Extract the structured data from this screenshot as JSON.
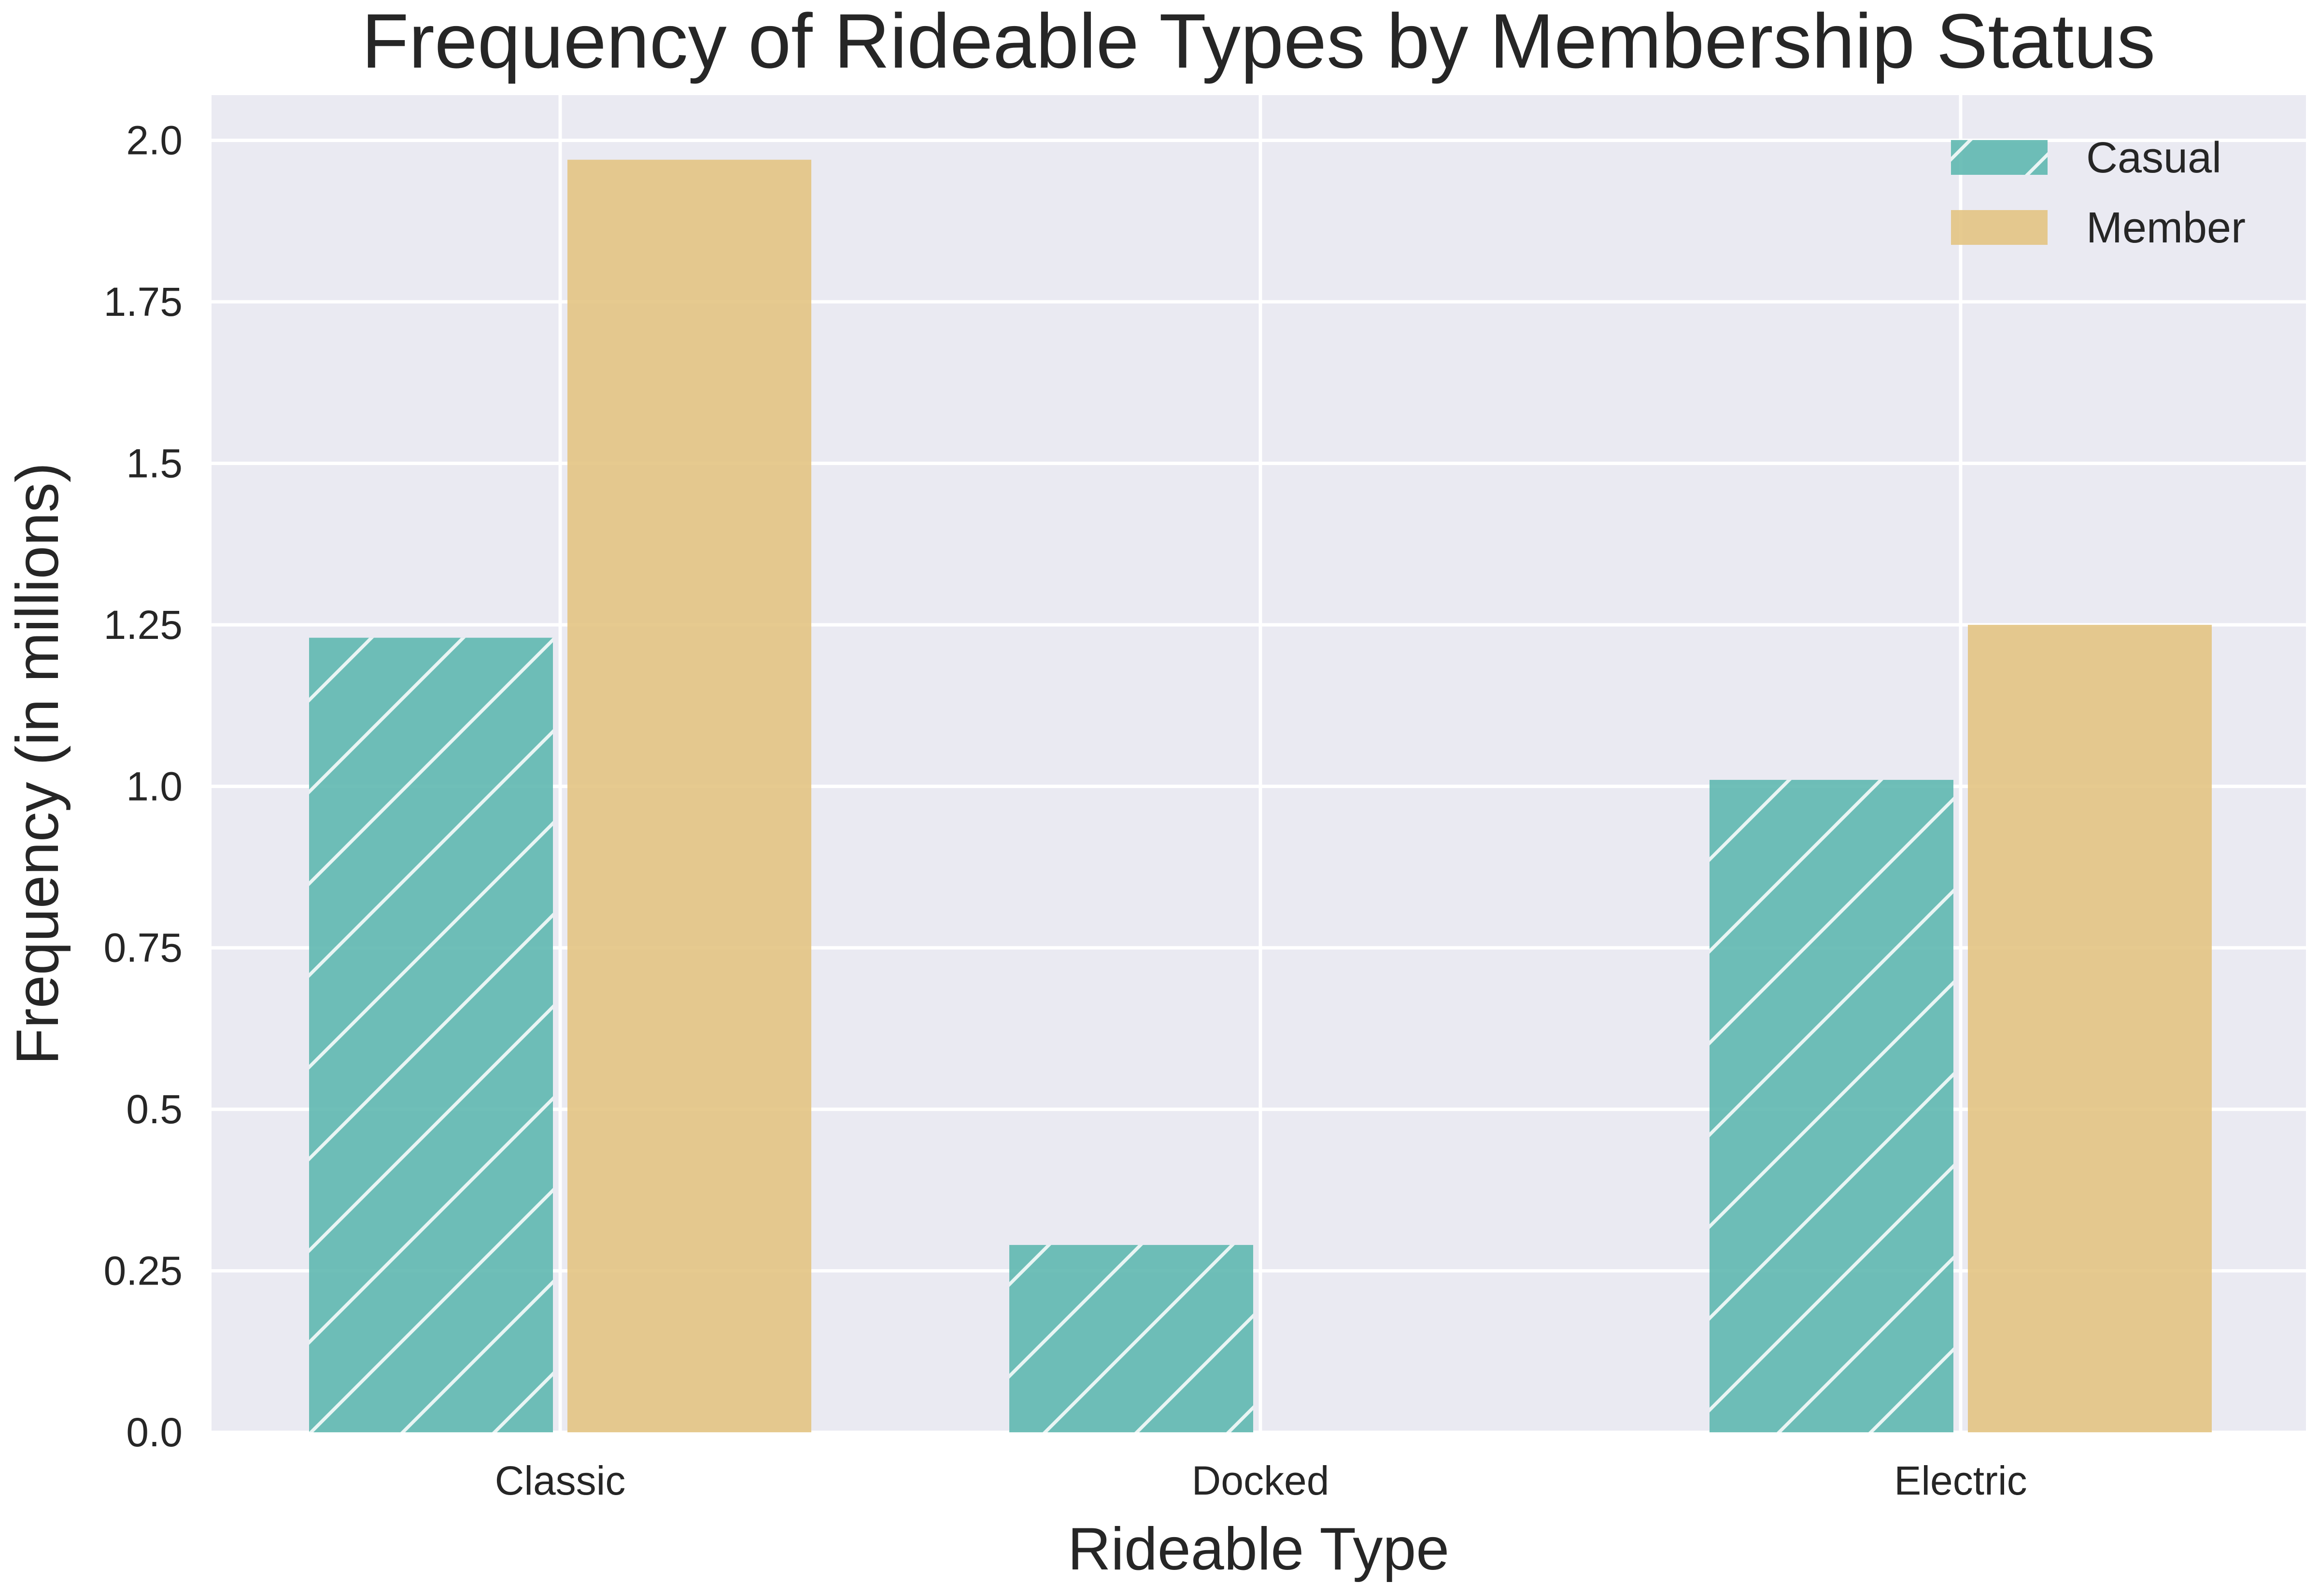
{
  "chart_data": {
    "type": "bar",
    "title": "Frequency of Rideable Types by Membership Status",
    "xlabel": "Rideable Type",
    "ylabel": "Frequency (in millions)",
    "categories": [
      "Classic",
      "Docked",
      "Electric"
    ],
    "series": [
      {
        "name": "Casual",
        "values": [
          1.23,
          0.29,
          1.01
        ],
        "color": "#5fb8b0",
        "hatch": "diagonal"
      },
      {
        "name": "Member",
        "values": [
          1.97,
          0.0,
          1.25
        ],
        "color": "#e3c483",
        "hatch": "none"
      }
    ],
    "ylim": [
      0,
      2.07
    ],
    "yticks": [
      0.0,
      0.25,
      0.5,
      0.75,
      1.0,
      1.25,
      1.5,
      1.75,
      2.0
    ],
    "ytick_labels": [
      "0.0",
      "0.25",
      "0.5",
      "0.75",
      "1.0",
      "1.25",
      "1.5",
      "1.75",
      "2.0"
    ],
    "grid": true,
    "legend_position": "top-right",
    "background_color": "#eaeaf2",
    "grid_color": "#ffffff"
  }
}
